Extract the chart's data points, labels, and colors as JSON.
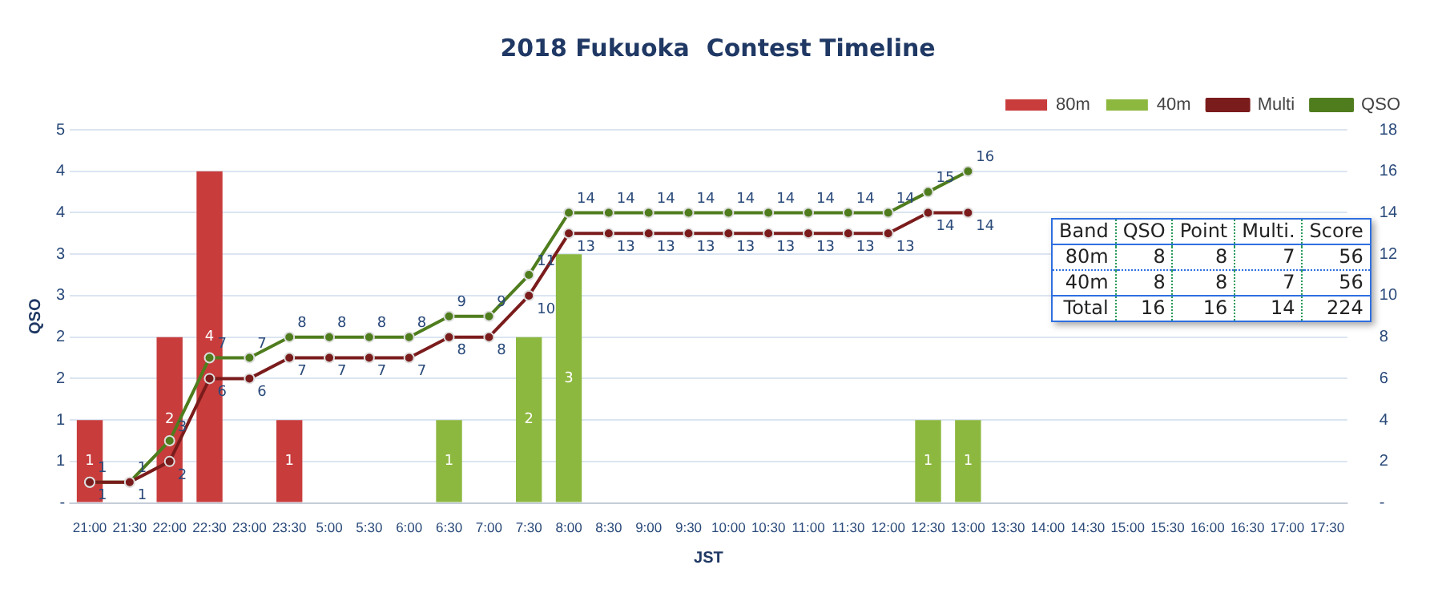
{
  "chart_data": {
    "type": "bar",
    "title": "2018 Fukuoka  Contest Timeline",
    "xlabel": "JST",
    "ylabel": "QSO",
    "categories": [
      "21:00",
      "21:30",
      "22:00",
      "22:30",
      "23:00",
      "23:30",
      "5:00",
      "5:30",
      "6:00",
      "6:30",
      "7:00",
      "7:30",
      "8:00",
      "8:30",
      "9:00",
      "9:30",
      "10:00",
      "10:30",
      "11:00",
      "11:30",
      "12:00",
      "12:30",
      "13:00",
      "13:30",
      "14:00",
      "14:30",
      "15:00",
      "15:30",
      "16:00",
      "16:30",
      "17:00",
      "17:30"
    ],
    "series": [
      {
        "name": "80m",
        "color": "#c83c3c",
        "values": [
          1,
          null,
          2,
          4,
          null,
          1,
          null,
          null,
          null,
          null,
          null,
          null,
          null,
          null,
          null,
          null,
          null,
          null,
          null,
          null,
          null,
          null,
          null,
          null,
          null,
          null,
          null,
          null,
          null,
          null,
          null,
          null
        ]
      },
      {
        "name": "40m",
        "color": "#8db83f",
        "values": [
          null,
          null,
          null,
          null,
          null,
          null,
          null,
          null,
          null,
          1,
          null,
          2,
          3,
          null,
          null,
          null,
          null,
          null,
          null,
          null,
          null,
          1,
          1,
          null,
          null,
          null,
          null,
          null,
          null,
          null,
          null,
          null
        ]
      },
      {
        "name": "Multi",
        "type": "line",
        "axis": "y2",
        "color": "#7b1c1c",
        "values": [
          1,
          1,
          2,
          6,
          6,
          7,
          7,
          7,
          7,
          8,
          8,
          10,
          13,
          13,
          13,
          13,
          13,
          13,
          13,
          13,
          13,
          14,
          14,
          null,
          null,
          null,
          null,
          null,
          null,
          null,
          null,
          null
        ]
      },
      {
        "name": "QSO",
        "type": "line",
        "axis": "y2",
        "color": "#4f7d1e",
        "values": [
          1,
          1,
          3,
          7,
          7,
          8,
          8,
          8,
          8,
          9,
          9,
          11,
          14,
          14,
          14,
          14,
          14,
          14,
          14,
          14,
          14,
          15,
          16,
          null,
          null,
          null,
          null,
          null,
          null,
          null,
          null,
          null
        ]
      }
    ],
    "stacked": true,
    "ylim": [
      0,
      4.5
    ],
    "yticks": [
      {
        "value": 0,
        "label": "-"
      },
      {
        "value": 0.5,
        "label": "1"
      },
      1,
      {
        "value": 1.5,
        "label": "2"
      },
      2,
      {
        "value": 2.5,
        "label": "3"
      },
      3,
      {
        "value": 3.5,
        "label": "4"
      },
      4,
      {
        "value": 4.5,
        "label": "5"
      }
    ],
    "y2lim": [
      0,
      18
    ],
    "y2ticks": [
      {
        "value": 0,
        "label": "-"
      },
      2,
      4,
      6,
      8,
      10,
      12,
      14,
      16,
      18
    ],
    "grid": "y",
    "legend": "top right",
    "marker": "circle",
    "line_style": "solid",
    "data_labels": true,
    "annotations": [
      "Band",
      "QSO",
      "Point",
      "Multi.",
      "Score",
      "80m",
      "8",
      "8",
      "7",
      "56",
      "40m",
      "8",
      "8",
      "7",
      "56",
      "Total",
      "16",
      "16",
      "14",
      "224"
    ]
  }
}
